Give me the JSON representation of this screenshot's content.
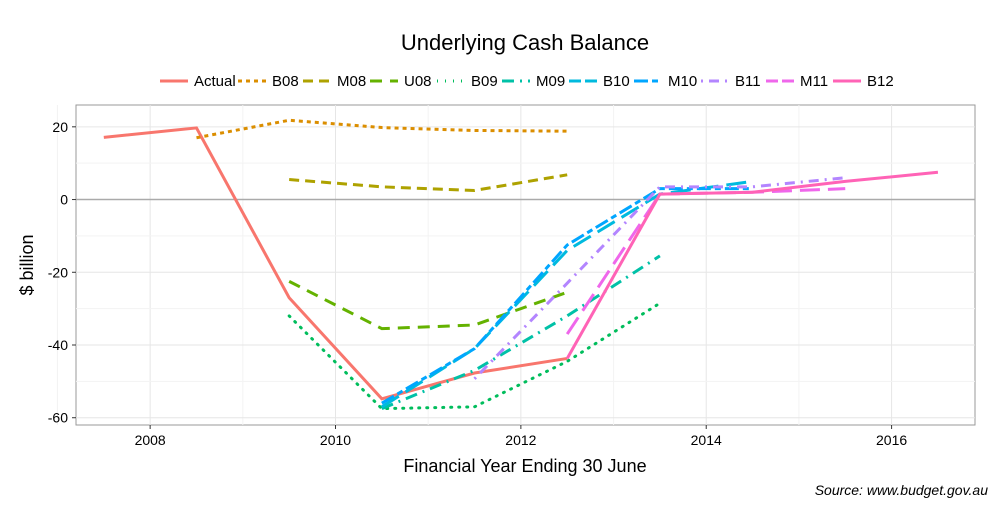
{
  "chart_data": {
    "type": "line",
    "title": "Underlying Cash Balance",
    "xlabel": "Financial Year Ending 30 June",
    "ylabel": "$ billion",
    "source": "Source: www.budget.gov.au",
    "xlim": [
      2007.2,
      2016.9
    ],
    "ylim": [
      -62,
      26
    ],
    "xticks": [
      2008,
      2010,
      2012,
      2014,
      2016
    ],
    "yticks": [
      20,
      0,
      -20,
      -40,
      -60
    ],
    "grid": true,
    "legend_position": "top",
    "series": [
      {
        "name": "Actual",
        "color": "#F8766D",
        "dash": "",
        "x": [
          2007.5,
          2008.5,
          2009.5,
          2010.5,
          2011.5,
          2012.5
        ],
        "y": [
          17.1,
          19.7,
          -27.0,
          -54.8,
          -47.7,
          -43.7
        ]
      },
      {
        "name": "B08",
        "color": "#DB8E00",
        "dash": "4,4",
        "x": [
          2008.5,
          2009.5,
          2010.5,
          2011.5,
          2012.5
        ],
        "y": [
          17.0,
          21.8,
          19.8,
          19.0,
          18.8
        ]
      },
      {
        "name": "M08",
        "color": "#AEA200",
        "dash": "10,6",
        "x": [
          2009.5,
          2010.5,
          2011.5,
          2012.5
        ],
        "y": [
          5.5,
          3.5,
          2.5,
          6.8
        ]
      },
      {
        "name": "U08",
        "color": "#64B200",
        "dash": "12,8",
        "x": [
          2009.5,
          2010.5,
          2011.5,
          2012.5
        ],
        "y": [
          -22.5,
          -35.5,
          -34.5,
          -25.5
        ]
      },
      {
        "name": "B09",
        "color": "#00BD5C",
        "dash": "1,7",
        "x": [
          2009.5,
          2010.5,
          2011.5,
          2012.5,
          2013.5
        ],
        "y": [
          -32.0,
          -57.5,
          -57.0,
          -44.5,
          -28.5
        ]
      },
      {
        "name": "M09",
        "color": "#00C1A7",
        "dash": "12,6,2,6",
        "x": [
          2010.5,
          2011.5,
          2012.5,
          2013.5
        ],
        "y": [
          -57.5,
          -47.0,
          -32.0,
          -15.5
        ]
      },
      {
        "name": "B10",
        "color": "#00BADE",
        "dash": "20,8",
        "x": [
          2010.5,
          2011.5,
          2012.5,
          2013.5,
          2014.5
        ],
        "y": [
          -57.0,
          -41.0,
          -14.0,
          1.5,
          5.0
        ]
      },
      {
        "name": "M10",
        "color": "#00A6FF",
        "dash": "14,4,6,4",
        "x": [
          2010.5,
          2011.5,
          2012.5,
          2013.5,
          2014.5
        ],
        "y": [
          -56.0,
          -41.0,
          -12.5,
          3.0,
          3.0
        ]
      },
      {
        "name": "B11",
        "color": "#B385FF",
        "dash": "2,6,10,6",
        "x": [
          2011.5,
          2012.5,
          2013.5,
          2014.5,
          2015.5
        ],
        "y": [
          -49.3,
          -23.0,
          3.5,
          3.5,
          6.0
        ]
      },
      {
        "name": "M11",
        "color": "#EF67EB",
        "dash": "20,8",
        "x": [
          2012.5,
          2013.5,
          2014.5,
          2015.5
        ],
        "y": [
          -37.0,
          1.5,
          2.0,
          3.0
        ]
      },
      {
        "name": "B12",
        "color": "#FF63B6",
        "dash": "",
        "x": [
          2012.5,
          2013.5,
          2014.5,
          2015.5,
          2016.5
        ],
        "y": [
          -43.7,
          1.5,
          2.0,
          5.0,
          7.5
        ]
      }
    ]
  }
}
